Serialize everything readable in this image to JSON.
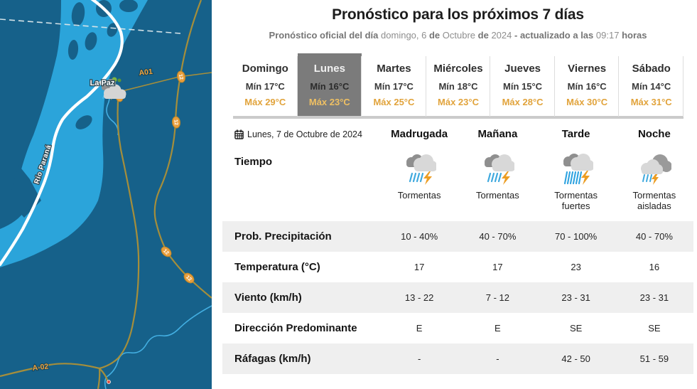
{
  "header": {
    "title": "Pronóstico para los próximos 7 días",
    "subtitle_parts": [
      {
        "t": "Pronóstico oficial del día",
        "b": true
      },
      {
        "t": "domingo, 6",
        "b": false
      },
      {
        "t": "de",
        "b": true
      },
      {
        "t": "Octubre",
        "b": false
      },
      {
        "t": "de",
        "b": true
      },
      {
        "t": "2024",
        "b": false
      },
      {
        "t": "- actualizado a las",
        "b": true
      },
      {
        "t": "09:17",
        "b": false
      },
      {
        "t": "horas",
        "b": true
      }
    ]
  },
  "tabs": {
    "days": [
      {
        "name": "Domingo",
        "min": "Mín 17°C",
        "max": "Máx 29°C",
        "selected": false
      },
      {
        "name": "Lunes",
        "min": "Mín 16°C",
        "max": "Máx 23°C",
        "selected": true
      },
      {
        "name": "Martes",
        "min": "Mín 17°C",
        "max": "Máx 25°C",
        "selected": false
      },
      {
        "name": "Miércoles",
        "min": "Mín 18°C",
        "max": "Máx 23°C",
        "selected": false
      },
      {
        "name": "Jueves",
        "min": "Mín 15°C",
        "max": "Máx 28°C",
        "selected": false
      },
      {
        "name": "Viernes",
        "min": "Mín 16°C",
        "max": "Máx 30°C",
        "selected": false
      },
      {
        "name": "Sábado",
        "min": "Mín 14°C",
        "max": "Máx 31°C",
        "selected": false
      }
    ]
  },
  "forecast": {
    "date": "Lunes, 7 de Octubre de 2024",
    "periods": [
      "Madrugada",
      "Mañana",
      "Tarde",
      "Noche"
    ],
    "tiempo_label": "Tiempo",
    "conditions": [
      {
        "icon": "storm",
        "label": "Tormentas"
      },
      {
        "icon": "storm",
        "label": "Tormentas"
      },
      {
        "icon": "storm-heavy",
        "label": "Tormentas fuertes"
      },
      {
        "icon": "storm-isolated",
        "label": "Tormentas aisladas"
      }
    ],
    "rows": [
      {
        "label": "Prob. Precipitación",
        "values": [
          "10 - 40%",
          "40 - 70%",
          "70 - 100%",
          "40 - 70%"
        ]
      },
      {
        "label": "Temperatura (°C)",
        "values": [
          "17",
          "17",
          "23",
          "16"
        ]
      },
      {
        "label": "Viento (km/h)",
        "values": [
          "13 - 22",
          "7 - 12",
          "23 - 31",
          "23 - 31"
        ]
      },
      {
        "label": "Dirección Predominante",
        "values": [
          "E",
          "E",
          "SE",
          "SE"
        ]
      },
      {
        "label": "Ráfagas (km/h)",
        "values": [
          "-",
          "-",
          "42 - 50",
          "51 - 59"
        ]
      }
    ]
  },
  "map": {
    "labels": {
      "city": "La Paz",
      "river": "Río Paraná",
      "route_a01": "A01",
      "route_12": "12",
      "route_6": "6",
      "route_a02": "A-02"
    },
    "colors": {
      "land": "#16618a",
      "water": "#2ba4da",
      "stream": "#43afe2",
      "road_major": "#ffffff",
      "road_secondary": "#a58e3b",
      "route_marker": "#e89e3c",
      "accent_max": "#e1a33b",
      "selected_tab": "#7b7b7b"
    }
  }
}
